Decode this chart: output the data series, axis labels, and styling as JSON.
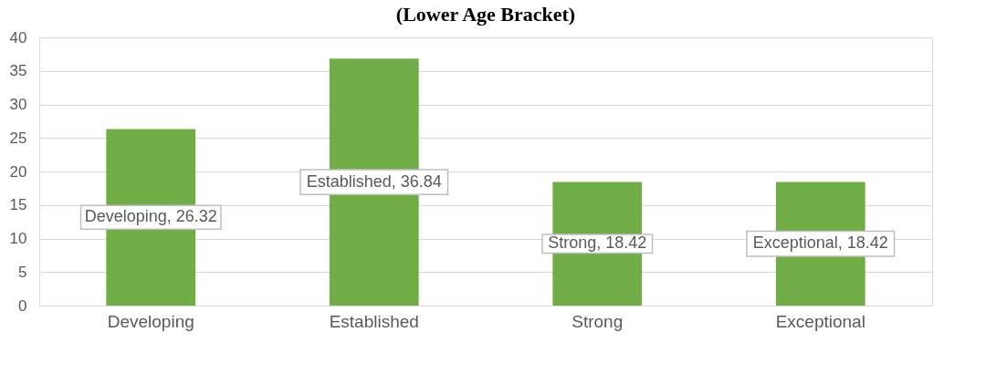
{
  "chart_data": {
    "type": "bar",
    "title": "(Lower Age Bracket)",
    "categories": [
      "Developing",
      "Established",
      "Strong",
      "Exceptional"
    ],
    "values": [
      26.32,
      36.84,
      18.42,
      18.42
    ],
    "color": "#70ad47",
    "value_labels": [
      "Developing, 26.32",
      "Established, 36.84",
      "Strong, 18.42",
      "Exceptional, 18.42"
    ],
    "ylim": [
      0,
      40
    ],
    "yticks": [
      0,
      5,
      10,
      15,
      20,
      25,
      30,
      35,
      40
    ],
    "grid": "y"
  }
}
